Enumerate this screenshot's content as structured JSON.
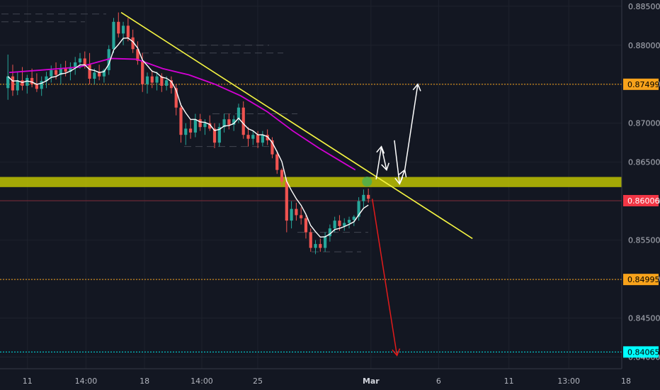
{
  "chart_data": {
    "type": "candlestick",
    "y_axis": {
      "range": [
        0.8385,
        0.8858
      ],
      "ticks": [
        "0.88500",
        "0.88000",
        "0.87500",
        "0.87000",
        "0.86500",
        "0.86000",
        "0.85500",
        "0.85000",
        "0.84500",
        "0.84000"
      ],
      "tick_values": [
        0.885,
        0.88,
        0.875,
        0.87,
        0.865,
        0.86,
        0.855,
        0.85,
        0.845,
        0.84
      ]
    },
    "x_axis": {
      "range": [
        0,
        24
      ],
      "ticks": [
        {
          "label": "11",
          "pos": 1,
          "bold": false
        },
        {
          "label": "14:00",
          "pos": 3.25,
          "bold": false
        },
        {
          "label": "18",
          "pos": 5.5,
          "bold": false
        },
        {
          "label": "14:00",
          "pos": 7.7,
          "bold": false
        },
        {
          "label": "25",
          "pos": 9.85,
          "bold": false
        },
        {
          "label": "Mar",
          "pos": 14.2,
          "bold": true
        },
        {
          "label": "6",
          "pos": 16.8,
          "bold": false
        },
        {
          "label": "11",
          "pos": 19.5,
          "bold": false
        },
        {
          "label": "13:00",
          "pos": 21.8,
          "bold": false
        },
        {
          "label": "18",
          "pos": 24.0,
          "bold": false
        }
      ]
    },
    "price_tags": [
      {
        "label": "0.87499",
        "value": 0.87499,
        "color": "#f7a21b",
        "text_color": "#000000"
      },
      {
        "label": "0.86006",
        "value": 0.86006,
        "color": "#f23645",
        "text_color": "#ffffff"
      },
      {
        "label": "0.84995",
        "value": 0.84995,
        "color": "#f7a21b",
        "text_color": "#000000"
      },
      {
        "label": "0.84065",
        "value": 0.84065,
        "color": "#00ffff",
        "text_color": "#000000"
      }
    ],
    "horizontal_lines": [
      {
        "value": 0.87499,
        "color": "#f7a21b",
        "style": "dotted"
      },
      {
        "value": 0.84995,
        "color": "#f7a21b",
        "style": "dotted"
      },
      {
        "value": 0.84065,
        "color": "#00e6e6",
        "style": "dotted"
      },
      {
        "value": 0.86006,
        "color": "#f23645",
        "style": "solid-faint"
      }
    ],
    "support_zone": {
      "low": 0.8618,
      "high": 0.8631,
      "color": "#c5c800"
    },
    "trendline": {
      "from": [
        4.6,
        0.8842
      ],
      "to": [
        18.1,
        0.8552
      ],
      "color": "#f5f542"
    },
    "candles": [
      {
        "o": 0.8745,
        "h": 0.8788,
        "l": 0.873,
        "c": 0.876
      },
      {
        "o": 0.876,
        "h": 0.8775,
        "l": 0.8735,
        "c": 0.8742
      },
      {
        "o": 0.8742,
        "h": 0.8766,
        "l": 0.8736,
        "c": 0.8755
      },
      {
        "o": 0.8755,
        "h": 0.8772,
        "l": 0.8742,
        "c": 0.8748
      },
      {
        "o": 0.8748,
        "h": 0.8762,
        "l": 0.8738,
        "c": 0.8758
      },
      {
        "o": 0.8758,
        "h": 0.877,
        "l": 0.8746,
        "c": 0.875
      },
      {
        "o": 0.875,
        "h": 0.8764,
        "l": 0.874,
        "c": 0.8744
      },
      {
        "o": 0.8744,
        "h": 0.876,
        "l": 0.8735,
        "c": 0.8754
      },
      {
        "o": 0.8754,
        "h": 0.8766,
        "l": 0.8745,
        "c": 0.876
      },
      {
        "o": 0.876,
        "h": 0.8774,
        "l": 0.8752,
        "c": 0.8768
      },
      {
        "o": 0.8768,
        "h": 0.8778,
        "l": 0.8756,
        "c": 0.8762
      },
      {
        "o": 0.8762,
        "h": 0.8776,
        "l": 0.875,
        "c": 0.877
      },
      {
        "o": 0.877,
        "h": 0.878,
        "l": 0.876,
        "c": 0.8766
      },
      {
        "o": 0.8766,
        "h": 0.8778,
        "l": 0.8755,
        "c": 0.8772
      },
      {
        "o": 0.8772,
        "h": 0.8785,
        "l": 0.8762,
        "c": 0.8778
      },
      {
        "o": 0.8778,
        "h": 0.879,
        "l": 0.877,
        "c": 0.8783
      },
      {
        "o": 0.8783,
        "h": 0.8792,
        "l": 0.877,
        "c": 0.8775
      },
      {
        "o": 0.8775,
        "h": 0.879,
        "l": 0.875,
        "c": 0.8757
      },
      {
        "o": 0.8757,
        "h": 0.877,
        "l": 0.875,
        "c": 0.8765
      },
      {
        "o": 0.8765,
        "h": 0.8775,
        "l": 0.8755,
        "c": 0.876
      },
      {
        "o": 0.876,
        "h": 0.877,
        "l": 0.8752,
        "c": 0.8768
      },
      {
        "o": 0.8768,
        "h": 0.88,
        "l": 0.8762,
        "c": 0.8795
      },
      {
        "o": 0.8795,
        "h": 0.8835,
        "l": 0.879,
        "c": 0.883
      },
      {
        "o": 0.883,
        "h": 0.8842,
        "l": 0.881,
        "c": 0.8815
      },
      {
        "o": 0.8815,
        "h": 0.883,
        "l": 0.88,
        "c": 0.8825
      },
      {
        "o": 0.8825,
        "h": 0.8835,
        "l": 0.8805,
        "c": 0.881
      },
      {
        "o": 0.881,
        "h": 0.882,
        "l": 0.879,
        "c": 0.8795
      },
      {
        "o": 0.8795,
        "h": 0.8805,
        "l": 0.8775,
        "c": 0.878
      },
      {
        "o": 0.878,
        "h": 0.879,
        "l": 0.874,
        "c": 0.875
      },
      {
        "o": 0.875,
        "h": 0.8765,
        "l": 0.8738,
        "c": 0.876
      },
      {
        "o": 0.876,
        "h": 0.8768,
        "l": 0.8745,
        "c": 0.8752
      },
      {
        "o": 0.8752,
        "h": 0.8766,
        "l": 0.8742,
        "c": 0.876
      },
      {
        "o": 0.876,
        "h": 0.8764,
        "l": 0.874,
        "c": 0.8748
      },
      {
        "o": 0.8748,
        "h": 0.876,
        "l": 0.8742,
        "c": 0.8755
      },
      {
        "o": 0.8755,
        "h": 0.876,
        "l": 0.8738,
        "c": 0.8745
      },
      {
        "o": 0.8745,
        "h": 0.875,
        "l": 0.871,
        "c": 0.872
      },
      {
        "o": 0.872,
        "h": 0.8725,
        "l": 0.8675,
        "c": 0.8685
      },
      {
        "o": 0.8685,
        "h": 0.87,
        "l": 0.8672,
        "c": 0.8693
      },
      {
        "o": 0.8693,
        "h": 0.8705,
        "l": 0.868,
        "c": 0.8688
      },
      {
        "o": 0.8688,
        "h": 0.8712,
        "l": 0.8682,
        "c": 0.8705
      },
      {
        "o": 0.8705,
        "h": 0.8712,
        "l": 0.869,
        "c": 0.8695
      },
      {
        "o": 0.8695,
        "h": 0.8705,
        "l": 0.8685,
        "c": 0.87
      },
      {
        "o": 0.87,
        "h": 0.871,
        "l": 0.869,
        "c": 0.8693
      },
      {
        "o": 0.8693,
        "h": 0.87,
        "l": 0.8668,
        "c": 0.8675
      },
      {
        "o": 0.8675,
        "h": 0.87,
        "l": 0.867,
        "c": 0.8695
      },
      {
        "o": 0.8695,
        "h": 0.8712,
        "l": 0.8688,
        "c": 0.8705
      },
      {
        "o": 0.8705,
        "h": 0.8712,
        "l": 0.8692,
        "c": 0.8698
      },
      {
        "o": 0.8698,
        "h": 0.871,
        "l": 0.869,
        "c": 0.8705
      },
      {
        "o": 0.8705,
        "h": 0.8725,
        "l": 0.87,
        "c": 0.872
      },
      {
        "o": 0.872,
        "h": 0.8728,
        "l": 0.868,
        "c": 0.8685
      },
      {
        "o": 0.8685,
        "h": 0.8695,
        "l": 0.867,
        "c": 0.868
      },
      {
        "o": 0.868,
        "h": 0.869,
        "l": 0.8672,
        "c": 0.8685
      },
      {
        "o": 0.8685,
        "h": 0.869,
        "l": 0.8668,
        "c": 0.8675
      },
      {
        "o": 0.8675,
        "h": 0.869,
        "l": 0.867,
        "c": 0.8685
      },
      {
        "o": 0.8685,
        "h": 0.8692,
        "l": 0.8672,
        "c": 0.8678
      },
      {
        "o": 0.8678,
        "h": 0.8682,
        "l": 0.8655,
        "c": 0.866
      },
      {
        "o": 0.866,
        "h": 0.8665,
        "l": 0.8635,
        "c": 0.864
      },
      {
        "o": 0.864,
        "h": 0.8642,
        "l": 0.862,
        "c": 0.8625
      },
      {
        "o": 0.8625,
        "h": 0.863,
        "l": 0.856,
        "c": 0.8575
      },
      {
        "o": 0.8575,
        "h": 0.86,
        "l": 0.8565,
        "c": 0.859
      },
      {
        "o": 0.859,
        "h": 0.8598,
        "l": 0.8575,
        "c": 0.8582
      },
      {
        "o": 0.8582,
        "h": 0.8592,
        "l": 0.857,
        "c": 0.8578
      },
      {
        "o": 0.8578,
        "h": 0.8584,
        "l": 0.8552,
        "c": 0.856
      },
      {
        "o": 0.856,
        "h": 0.8565,
        "l": 0.8535,
        "c": 0.854
      },
      {
        "o": 0.854,
        "h": 0.855,
        "l": 0.8532,
        "c": 0.8545
      },
      {
        "o": 0.8545,
        "h": 0.8552,
        "l": 0.8535,
        "c": 0.854
      },
      {
        "o": 0.854,
        "h": 0.856,
        "l": 0.8535,
        "c": 0.8555
      },
      {
        "o": 0.8555,
        "h": 0.857,
        "l": 0.8548,
        "c": 0.8565
      },
      {
        "o": 0.8565,
        "h": 0.858,
        "l": 0.856,
        "c": 0.8575
      },
      {
        "o": 0.8575,
        "h": 0.8582,
        "l": 0.8562,
        "c": 0.8568
      },
      {
        "o": 0.8568,
        "h": 0.8578,
        "l": 0.8562,
        "c": 0.8572
      },
      {
        "o": 0.8572,
        "h": 0.858,
        "l": 0.8565,
        "c": 0.8576
      },
      {
        "o": 0.8576,
        "h": 0.8582,
        "l": 0.8568,
        "c": 0.858
      },
      {
        "o": 0.858,
        "h": 0.8605,
        "l": 0.8575,
        "c": 0.86
      },
      {
        "o": 0.86,
        "h": 0.8615,
        "l": 0.8592,
        "c": 0.8608
      },
      {
        "o": 0.8608,
        "h": 0.8616,
        "l": 0.8598,
        "c": 0.8603
      }
    ],
    "ema_fast": {
      "color": "#ffffff"
    },
    "sma_slow": {
      "color": "#d400d4",
      "points": [
        [
          0.3,
          0.8765
        ],
        [
          1.5,
          0.8768
        ],
        [
          3.0,
          0.8772
        ],
        [
          4.2,
          0.8783
        ],
        [
          5.2,
          0.8782
        ],
        [
          6.2,
          0.877
        ],
        [
          7.2,
          0.8762
        ],
        [
          8.2,
          0.875
        ],
        [
          9.2,
          0.8735
        ],
        [
          10.2,
          0.8715
        ],
        [
          11.2,
          0.869
        ],
        [
          12.2,
          0.8668
        ],
        [
          13.1,
          0.865
        ],
        [
          13.6,
          0.864
        ]
      ]
    },
    "annotations": {
      "touch_point": {
        "x": 14.05,
        "y": 0.8625,
        "color": "#4caf50"
      },
      "white_arrows": [
        {
          "points": [
            [
              14.4,
              0.8628
            ],
            [
              14.6,
              0.867
            ],
            [
              14.8,
              0.864
            ]
          ]
        },
        {
          "points": [
            [
              15.1,
              0.8678
            ],
            [
              15.3,
              0.8622
            ],
            [
              15.5,
              0.864
            ],
            [
              16.0,
              0.875
            ]
          ]
        }
      ],
      "red_arrow": {
        "from": [
          14.25,
          0.8603
        ],
        "to": [
          15.2,
          0.8402
        ],
        "color": "#e31b1b"
      }
    }
  }
}
